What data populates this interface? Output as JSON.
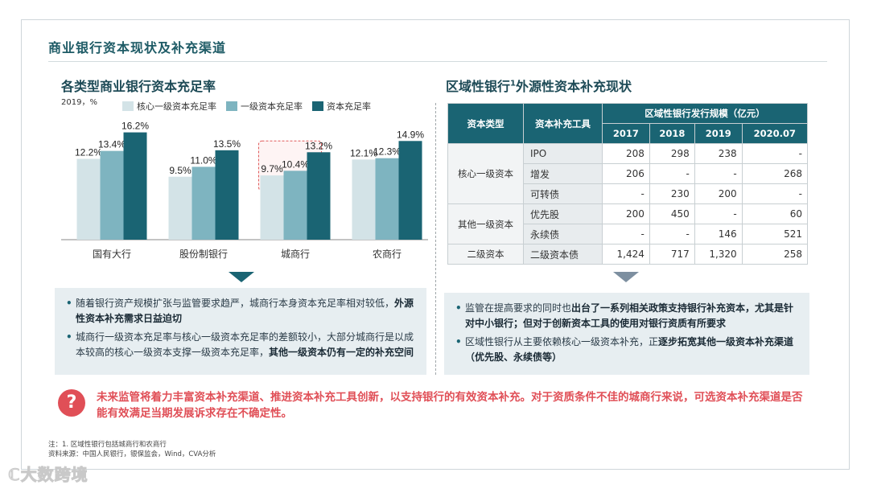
{
  "page_title": "商业银行资本现状及补充渠道",
  "left": {
    "section_title": "各类型商业银行资本充足率",
    "bullets": [
      {
        "text": "随着银行资产规模扩张与监管要求趋严，城商行本身资本充足率相对较低，",
        "bold": "外源性资本补充需求日益迫切"
      },
      {
        "text": "城商行一级资本充足率与核心一级资本充足率的差额较小，大部分城商行是以成本较高的核心一级资本支撑一级资本充足率，",
        "bold": "其他一级资本仍有一定的补充空间"
      }
    ]
  },
  "chart_data": {
    "type": "bar",
    "subtitle": "2019，%",
    "categories": [
      "国有大行",
      "股份制银行",
      "城商行",
      "农商行"
    ],
    "series": [
      {
        "name": "核心一级资本充足率",
        "color": "#d3e3e7",
        "values": [
          12.2,
          9.5,
          9.7,
          12.1
        ],
        "labels": [
          "12.2%",
          "9.5%",
          "9.7%",
          "12.1%"
        ]
      },
      {
        "name": "一级资本充足率",
        "color": "#7eb4c0",
        "values": [
          13.4,
          11.0,
          10.4,
          12.3
        ],
        "labels": [
          "13.4%",
          "11.0%",
          "10.4%",
          "12.3%"
        ]
      },
      {
        "name": "资本充足率",
        "color": "#1a6473",
        "values": [
          16.2,
          13.5,
          13.2,
          14.9
        ],
        "labels": [
          "16.2%",
          "13.5%",
          "13.2%",
          "14.9%"
        ]
      }
    ],
    "highlight_category": "城商行",
    "ylim": [
      0,
      17
    ],
    "grid": false,
    "legend": "top"
  },
  "right": {
    "section_title_a": "区域性银行",
    "section_title_sup": "1",
    "section_title_b": "外源性资本补充现状",
    "table": {
      "headers": [
        "资本类型",
        "资本补充工具",
        "区域性银行发行规模（亿元）"
      ],
      "years": [
        "2017",
        "2018",
        "2019",
        "2020.07"
      ],
      "groups": [
        {
          "type": "核心一级资本",
          "rows": [
            {
              "tool": "IPO",
              "values": [
                "208",
                "298",
                "238",
                "-"
              ]
            },
            {
              "tool": "增发",
              "values": [
                "206",
                "-",
                "-",
                "268"
              ]
            },
            {
              "tool": "可转债",
              "values": [
                "-",
                "230",
                "200",
                "-"
              ]
            }
          ]
        },
        {
          "type": "其他一级资本",
          "rows": [
            {
              "tool": "优先股",
              "values": [
                "200",
                "450",
                "-",
                "60"
              ]
            },
            {
              "tool": "永续债",
              "values": [
                "-",
                "-",
                "146",
                "521"
              ]
            }
          ]
        },
        {
          "type": "二级资本",
          "rows": [
            {
              "tool": "二级资本债",
              "values": [
                "1,424",
                "717",
                "1,320",
                "258"
              ]
            }
          ]
        }
      ]
    },
    "bullets": [
      {
        "text": "监管在提高要求的同时也",
        "bold": "出台了一系列相关政策支持银行补充资本，尤其是针对中小银行；但对于创新资本工具的使用对银行资质有所要求",
        "tail": ""
      },
      {
        "text": "区域性银行从主要依赖核心一级资本补充，正",
        "bold": "逐步拓宽其他一级资本补充渠道（优先股、永续债等）",
        "tail": ""
      }
    ]
  },
  "warning": {
    "icon": "?",
    "text": "未来监管将着力丰富资本补充渠道、推进资本补充工具创新，以支持银行的有效资本补充。对于资质条件不佳的城商行来说，可选资本补充渠道是否能有效满足当期发展诉求存在不确定性。"
  },
  "footnotes": {
    "note": "注：1. 区域性银行包括城商行和农商行",
    "source": "资料来源：中国人民银行，银保监会，Wind，CVA分析"
  },
  "watermark": "大数跨境"
}
